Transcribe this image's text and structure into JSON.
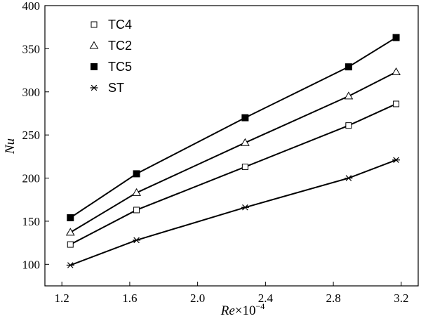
{
  "chart_data": {
    "type": "line",
    "title": "",
    "xlabel": {
      "italic": "Re",
      "rest": "×10",
      "sup": "−4"
    },
    "ylabel": "Nu",
    "xlim": [
      1.1,
      3.3
    ],
    "ylim": [
      75,
      400
    ],
    "x": [
      1.25,
      1.64,
      2.28,
      2.89,
      3.17
    ],
    "xticks": [
      1.2,
      1.6,
      2.0,
      2.4,
      2.8,
      3.2
    ],
    "xtick_labels": [
      "1.2",
      "1.6",
      "2.0",
      "2.4",
      "2.8",
      "3.2"
    ],
    "yticks": [
      100,
      150,
      200,
      250,
      300,
      350,
      400
    ],
    "ytick_labels": [
      "100",
      "150",
      "200",
      "250",
      "300",
      "350",
      "400"
    ],
    "grid": false,
    "legend_position": "top-left",
    "series": [
      {
        "name": "TC4",
        "marker": "open-square",
        "values": [
          123,
          163,
          213,
          261,
          286
        ]
      },
      {
        "name": "TC2",
        "marker": "open-triangle",
        "values": [
          137,
          183,
          241,
          295,
          323
        ]
      },
      {
        "name": "TC5",
        "marker": "filled-square",
        "values": [
          154,
          205,
          270,
          329,
          363
        ]
      },
      {
        "name": "ST",
        "marker": "asterisk",
        "values": [
          99,
          128,
          166,
          200,
          221
        ]
      }
    ]
  }
}
